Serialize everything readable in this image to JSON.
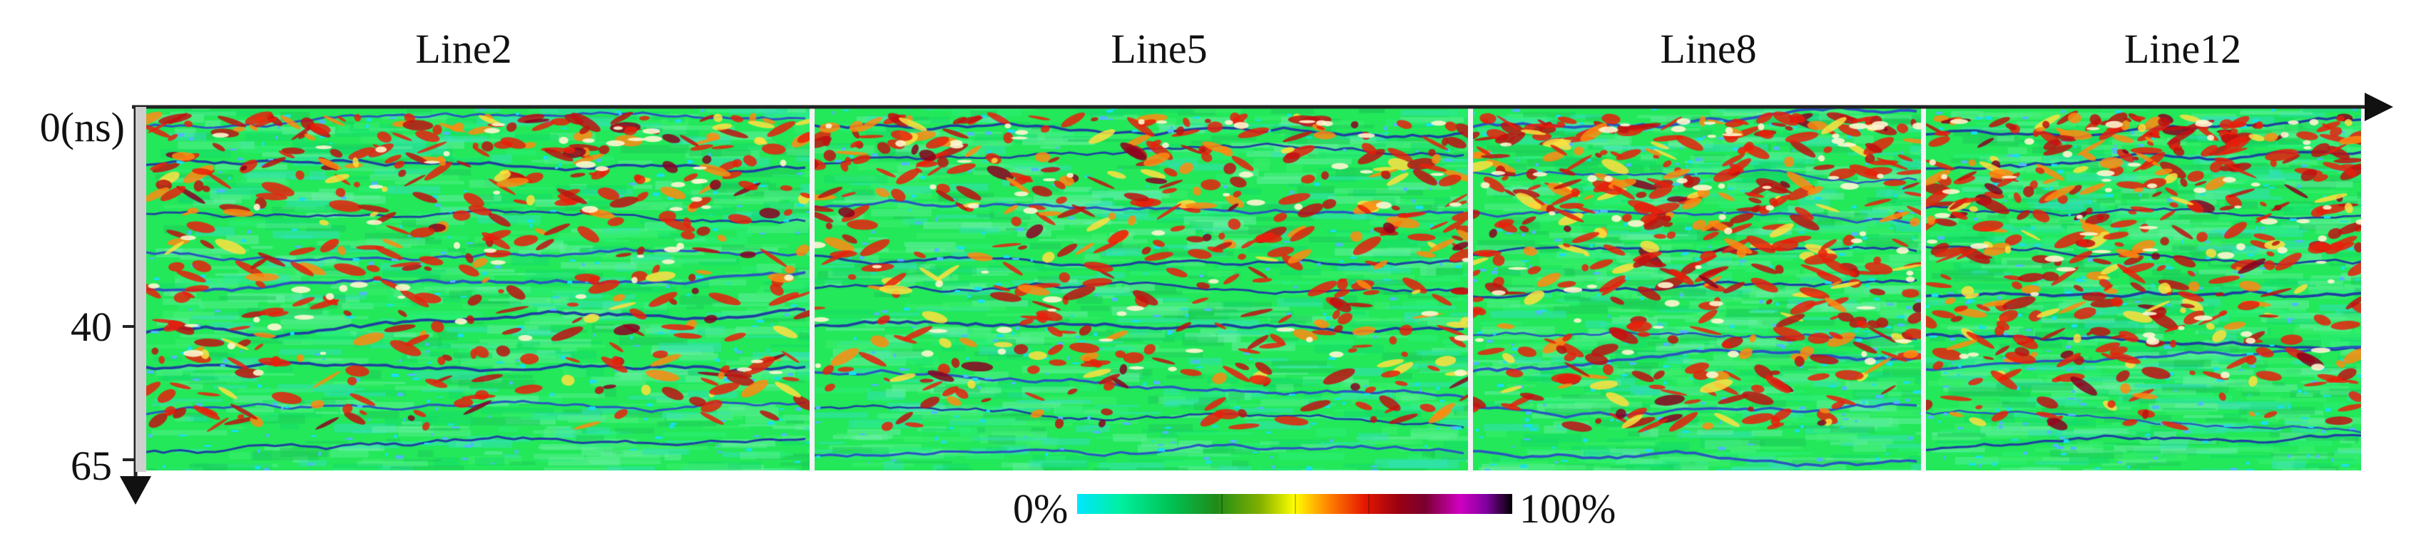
{
  "panels": [
    {
      "id": "line2",
      "title": "Line2"
    },
    {
      "id": "line5",
      "title": "Line5"
    },
    {
      "id": "line8",
      "title": "Line8"
    },
    {
      "id": "line12",
      "title": "Line12"
    }
  ],
  "axis": {
    "y_ticks": [
      "0(ns)",
      "40",
      "65"
    ]
  },
  "colorbar": {
    "min_label": "0%",
    "max_label": "100%",
    "stops": [
      "#00e6ff",
      "#00f0a0",
      "#00c050",
      "#208a18",
      "#80b000",
      "#ffff00",
      "#ff7f00",
      "#e51800",
      "#990011",
      "#7a0030",
      "#d000c0",
      "#8000a0",
      "#000000"
    ]
  }
}
